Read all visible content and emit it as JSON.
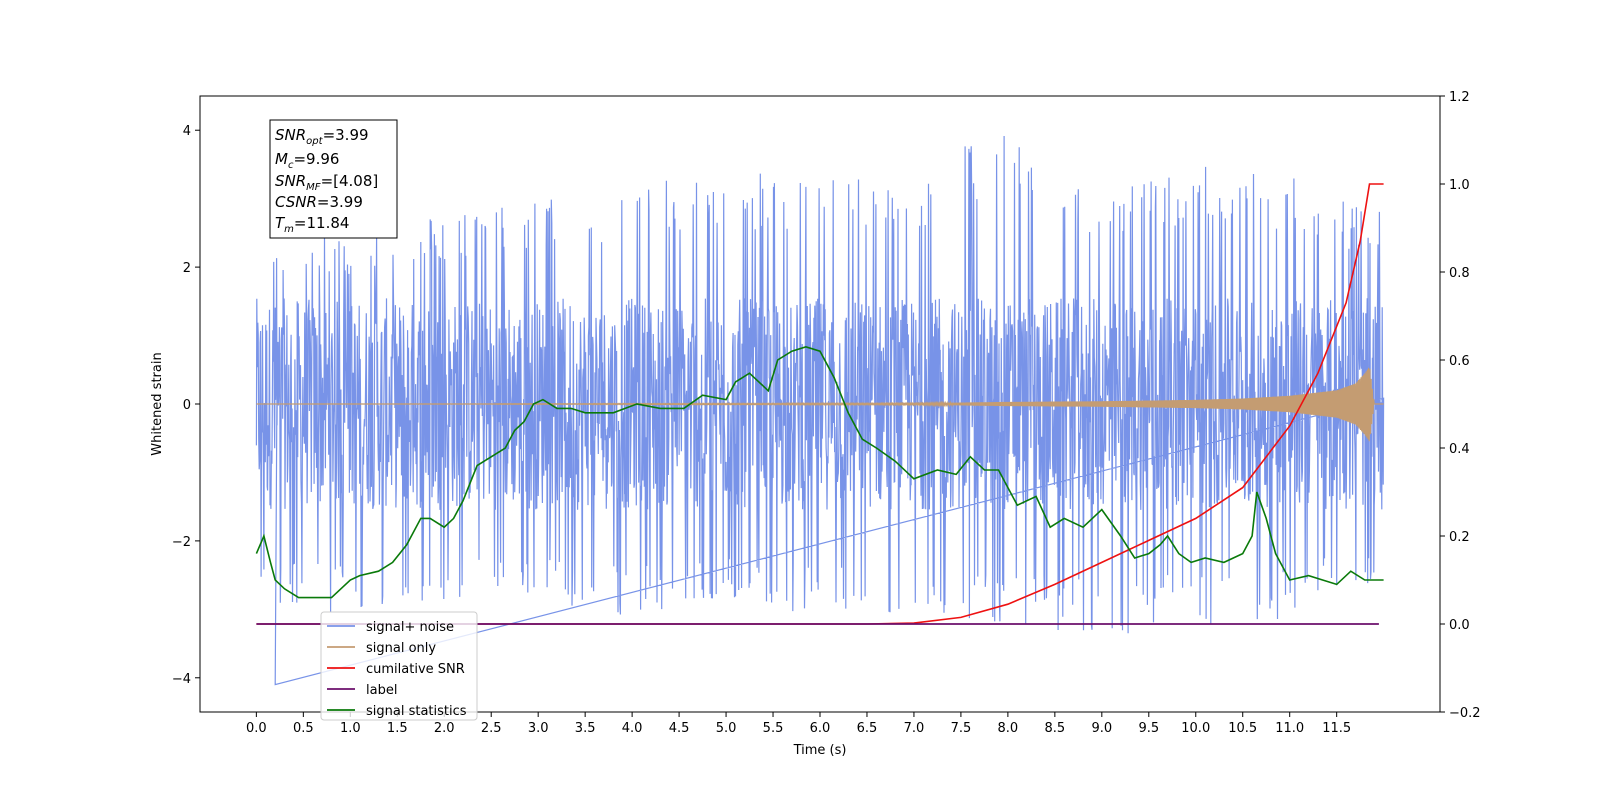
{
  "chart_data": {
    "type": "line",
    "title": "",
    "xlabel": "Time (s)",
    "ylabel": "Whitened strain",
    "ylabel_right": "",
    "xlim": [
      -0.6,
      12.6
    ],
    "ylim": [
      -4.5,
      4.5
    ],
    "ylim_right": [
      -0.2,
      1.2
    ],
    "x_ticks": [
      0.0,
      0.5,
      1.0,
      1.5,
      2.0,
      2.5,
      3.0,
      3.5,
      4.0,
      4.5,
      5.0,
      5.5,
      6.0,
      6.5,
      7.0,
      7.5,
      8.0,
      8.5,
      9.0,
      9.5,
      10.0,
      10.5,
      11.0,
      11.5
    ],
    "x_tick_labels": [
      "0.0",
      "0.5",
      "1.0",
      "1.5",
      "2.0",
      "2.5",
      "3.0",
      "3.5",
      "4.0",
      "4.5",
      "5.0",
      "5.5",
      "6.0",
      "6.5",
      "7.0",
      "7.5",
      "8.0",
      "8.5",
      "9.0",
      "9.5",
      "10.0",
      "10.5",
      "11.0",
      "11.5"
    ],
    "y_ticks": [
      -4,
      -2,
      0,
      2,
      4
    ],
    "y_tick_labels": [
      "−4",
      "−2",
      "0",
      "2",
      "4"
    ],
    "y_ticks_right": [
      -0.2,
      0.0,
      0.2,
      0.4,
      0.6,
      0.8,
      1.0,
      1.2
    ],
    "y_tick_labels_right": [
      "−0.2",
      "0.0",
      "0.2",
      "0.4",
      "0.6",
      "0.8",
      "1.0",
      "1.2"
    ],
    "grid": false,
    "legend_position": "bottom-left",
    "annotation": {
      "snr_opt_base": "SNR",
      "snr_opt_sub": "opt",
      "snr_opt_val": "=3.99",
      "mc_base": "M",
      "mc_sub": "c",
      "mc_val": "=9.96",
      "snr_mf_base": "SNR",
      "snr_mf_sub": "MF",
      "snr_mf_val": "=[4.08]",
      "csnr_base": "CSNR",
      "csnr_val": "=3.99",
      "tm_base": "T",
      "tm_sub": "m",
      "tm_val": "=11.84"
    },
    "series": [
      {
        "name": "signal+ noise",
        "color": "#7893e8",
        "axis": "left",
        "t_range": [
          0.0,
          12.0
        ],
        "band_outline": {
          "t": [
            0.0,
            1.0,
            2.0,
            3.0,
            4.0,
            5.0,
            6.0,
            7.0,
            7.8,
            9.0,
            10.0,
            11.0,
            12.0
          ],
          "upper": [
            2.3,
            2.5,
            2.8,
            3.0,
            3.2,
            3.4,
            3.4,
            3.3,
            4.1,
            3.2,
            3.5,
            3.4,
            2.8
          ],
          "lower": [
            -2.9,
            -3.1,
            -3.0,
            -3.0,
            -3.2,
            -2.9,
            -3.1,
            -3.1,
            -3.2,
            -3.4,
            -3.3,
            -3.2,
            -2.5
          ]
        }
      },
      {
        "name": "signal only",
        "color": "#c49c72",
        "axis": "left",
        "t": [
          0.0,
          7.0,
          8.0,
          9.0,
          10.0,
          10.5,
          11.0,
          11.5,
          11.7,
          11.8,
          11.85,
          11.9,
          12.0
        ],
        "envelope": [
          0.0,
          0.01,
          0.03,
          0.04,
          0.06,
          0.08,
          0.12,
          0.2,
          0.3,
          0.45,
          0.55,
          0.0,
          0.0
        ]
      },
      {
        "name": "cumilative SNR",
        "color": "#ee1111",
        "axis": "right",
        "x": [
          0.0,
          6.5,
          7.0,
          7.5,
          8.0,
          8.5,
          9.0,
          9.5,
          10.0,
          10.5,
          11.0,
          11.3,
          11.6,
          11.75,
          11.85,
          11.86,
          12.0
        ],
        "y": [
          0.0,
          0.0,
          0.002,
          0.015,
          0.045,
          0.09,
          0.14,
          0.19,
          0.24,
          0.31,
          0.45,
          0.57,
          0.73,
          0.87,
          1.0,
          1.0,
          1.0
        ]
      },
      {
        "name": "label",
        "color": "#6b0f6b",
        "axis": "right",
        "x": [
          0.0,
          11.95
        ],
        "y": [
          0.0,
          0.0
        ]
      },
      {
        "name": "signal statistics",
        "color": "#0a7a0a",
        "axis": "right",
        "x": [
          0.0,
          0.08,
          0.15,
          0.2,
          0.3,
          0.45,
          0.6,
          0.75,
          0.8,
          0.9,
          1.0,
          1.1,
          1.3,
          1.45,
          1.6,
          1.75,
          1.85,
          2.0,
          2.1,
          2.2,
          2.35,
          2.5,
          2.65,
          2.75,
          2.85,
          2.95,
          3.05,
          3.2,
          3.35,
          3.5,
          3.8,
          4.05,
          4.3,
          4.55,
          4.75,
          5.0,
          5.1,
          5.25,
          5.45,
          5.55,
          5.7,
          5.85,
          6.0,
          6.15,
          6.3,
          6.45,
          6.6,
          6.8,
          7.0,
          7.25,
          7.45,
          7.6,
          7.75,
          7.9,
          8.1,
          8.3,
          8.45,
          8.6,
          8.8,
          9.0,
          9.2,
          9.35,
          9.5,
          9.62,
          9.7,
          9.82,
          9.95,
          10.1,
          10.3,
          10.5,
          10.6,
          10.65,
          10.75,
          10.85,
          11.0,
          11.2,
          11.35,
          11.5,
          11.65,
          11.8,
          12.0
        ],
        "y": [
          0.16,
          0.2,
          0.14,
          0.1,
          0.08,
          0.06,
          0.06,
          0.06,
          0.06,
          0.08,
          0.1,
          0.11,
          0.12,
          0.14,
          0.18,
          0.24,
          0.24,
          0.22,
          0.24,
          0.28,
          0.36,
          0.38,
          0.4,
          0.44,
          0.46,
          0.5,
          0.51,
          0.49,
          0.49,
          0.48,
          0.48,
          0.5,
          0.49,
          0.49,
          0.52,
          0.51,
          0.55,
          0.57,
          0.53,
          0.6,
          0.62,
          0.63,
          0.62,
          0.56,
          0.48,
          0.42,
          0.4,
          0.37,
          0.33,
          0.35,
          0.34,
          0.38,
          0.35,
          0.35,
          0.27,
          0.29,
          0.22,
          0.24,
          0.22,
          0.26,
          0.2,
          0.15,
          0.16,
          0.18,
          0.2,
          0.16,
          0.14,
          0.15,
          0.14,
          0.16,
          0.2,
          0.3,
          0.24,
          0.16,
          0.1,
          0.11,
          0.1,
          0.09,
          0.12,
          0.1,
          0.1
        ]
      }
    ]
  }
}
